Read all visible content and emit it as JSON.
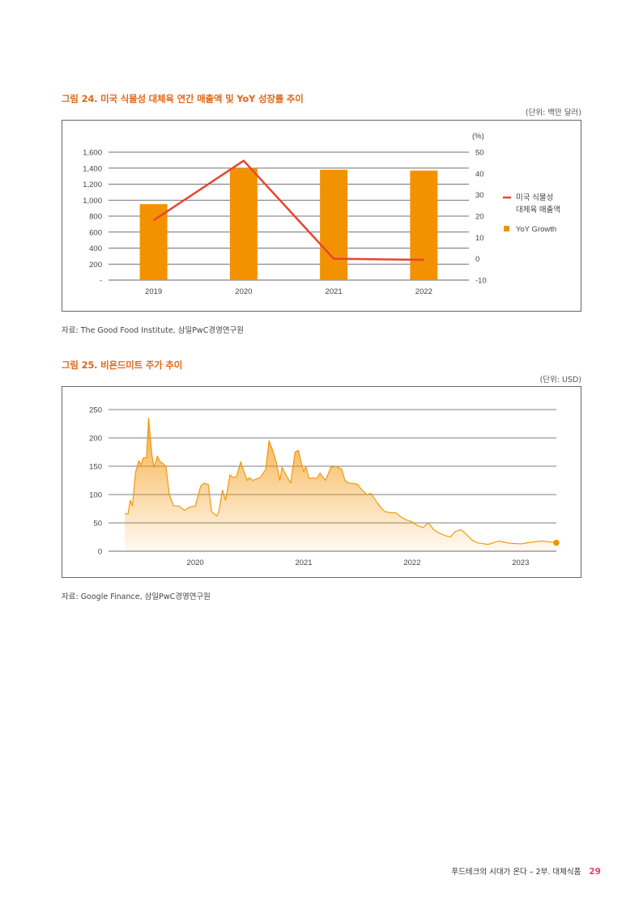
{
  "figures": [
    {
      "title": "그림 24. 미국 식물성 대체육 연간 매출액 및 YoY 성장률 추이",
      "unit": "(단위: 백만 달러)",
      "source": "자료: The Good Food Institute, 삼일PwC경영연구원"
    },
    {
      "title": "그림 25. 비욘드미트 주가 추이",
      "unit": "(단위: USD)",
      "source": "자료: Google Finance, 삼일PwC경영연구원"
    }
  ],
  "chart_data": [
    {
      "type": "bar",
      "categories": [
        "2019",
        "2020",
        "2021",
        "2022"
      ],
      "series": [
        {
          "name": "YoY Growth",
          "kind": "bar",
          "axis": "left",
          "color": "#f39200",
          "values": [
            950,
            1400,
            1380,
            1370
          ]
        },
        {
          "name": "미국 식물성 대체육 매출액",
          "kind": "line",
          "axis": "right",
          "color": "#e8452f",
          "values": [
            18,
            46,
            0,
            -0.5
          ]
        }
      ],
      "y_left": {
        "ylim": [
          0,
          1600
        ],
        "ticks": [
          0,
          200,
          400,
          600,
          800,
          1000,
          1200,
          1400,
          1600
        ],
        "tick_labels": [
          "-",
          "200",
          "400",
          "600",
          "800",
          "1,000",
          "1,200",
          "1,400",
          "1,600"
        ]
      },
      "y_right": {
        "ylim": [
          -10,
          50
        ],
        "ticks": [
          -10,
          0,
          10,
          20,
          30,
          40,
          50
        ],
        "tick_labels": [
          "-10",
          "0",
          "10",
          "20",
          "30",
          "40",
          "50"
        ],
        "unit_label": "(%)"
      },
      "legend": [
        {
          "label": "미국 식물성 대체육 매출액",
          "label_lines": [
            "미국 식물성",
            "대체육 매출액"
          ],
          "marker": "line",
          "color": "#e8452f"
        },
        {
          "label": "YoY Growth",
          "label_lines": [
            "YoY Growth"
          ],
          "marker": "square",
          "color": "#f39200"
        }
      ],
      "legend_position": "right",
      "grid": true
    },
    {
      "type": "area",
      "color": "#f39200",
      "x_ticks": [
        2020,
        2021,
        2022,
        2023
      ],
      "y_ticks": [
        0,
        50,
        100,
        150,
        200,
        250
      ],
      "ylim": [
        0,
        250
      ],
      "xlim": [
        2019.35,
        2023.33
      ],
      "grid": true,
      "x": [
        2019.35,
        2019.38,
        2019.4,
        2019.42,
        2019.45,
        2019.48,
        2019.5,
        2019.52,
        2019.55,
        2019.57,
        2019.6,
        2019.62,
        2019.65,
        2019.68,
        2019.7,
        2019.73,
        2019.76,
        2019.8,
        2019.85,
        2019.9,
        2019.95,
        2020.0,
        2020.05,
        2020.08,
        2020.12,
        2020.15,
        2020.2,
        2020.22,
        2020.25,
        2020.28,
        2020.32,
        2020.35,
        2020.38,
        2020.42,
        2020.45,
        2020.48,
        2020.5,
        2020.53,
        2020.57,
        2020.6,
        2020.65,
        2020.68,
        2020.72,
        2020.75,
        2020.78,
        2020.8,
        2020.85,
        2020.88,
        2020.92,
        2020.95,
        2021.0,
        2021.02,
        2021.05,
        2021.08,
        2021.12,
        2021.15,
        2021.2,
        2021.25,
        2021.3,
        2021.35,
        2021.38,
        2021.42,
        2021.45,
        2021.5,
        2021.52,
        2021.58,
        2021.62,
        2021.68,
        2021.72,
        2021.75,
        2021.8,
        2021.85,
        2021.9,
        2021.95,
        2022.0,
        2022.05,
        2022.1,
        2022.15,
        2022.2,
        2022.25,
        2022.3,
        2022.35,
        2022.4,
        2022.45,
        2022.5,
        2022.55,
        2022.6,
        2022.7,
        2022.8,
        2022.9,
        2023.0,
        2023.1,
        2023.2,
        2023.33
      ],
      "y": [
        66,
        66,
        90,
        80,
        140,
        160,
        152,
        165,
        165,
        235,
        170,
        148,
        168,
        157,
        155,
        150,
        100,
        80,
        80,
        72,
        78,
        80,
        115,
        120,
        118,
        70,
        62,
        72,
        108,
        90,
        135,
        130,
        132,
        158,
        140,
        125,
        130,
        125,
        128,
        130,
        145,
        195,
        175,
        155,
        125,
        148,
        130,
        120,
        175,
        178,
        140,
        150,
        128,
        130,
        128,
        138,
        125,
        148,
        150,
        145,
        125,
        120,
        120,
        118,
        112,
        100,
        102,
        85,
        75,
        70,
        68,
        68,
        60,
        55,
        52,
        45,
        42,
        50,
        38,
        32,
        28,
        25,
        35,
        38,
        30,
        20,
        15,
        12,
        18,
        14,
        13,
        16,
        18,
        15
      ]
    }
  ],
  "footer": {
    "text": "푸드테크의 시대가 온다 – 2부. 대체식품",
    "page": "29"
  }
}
